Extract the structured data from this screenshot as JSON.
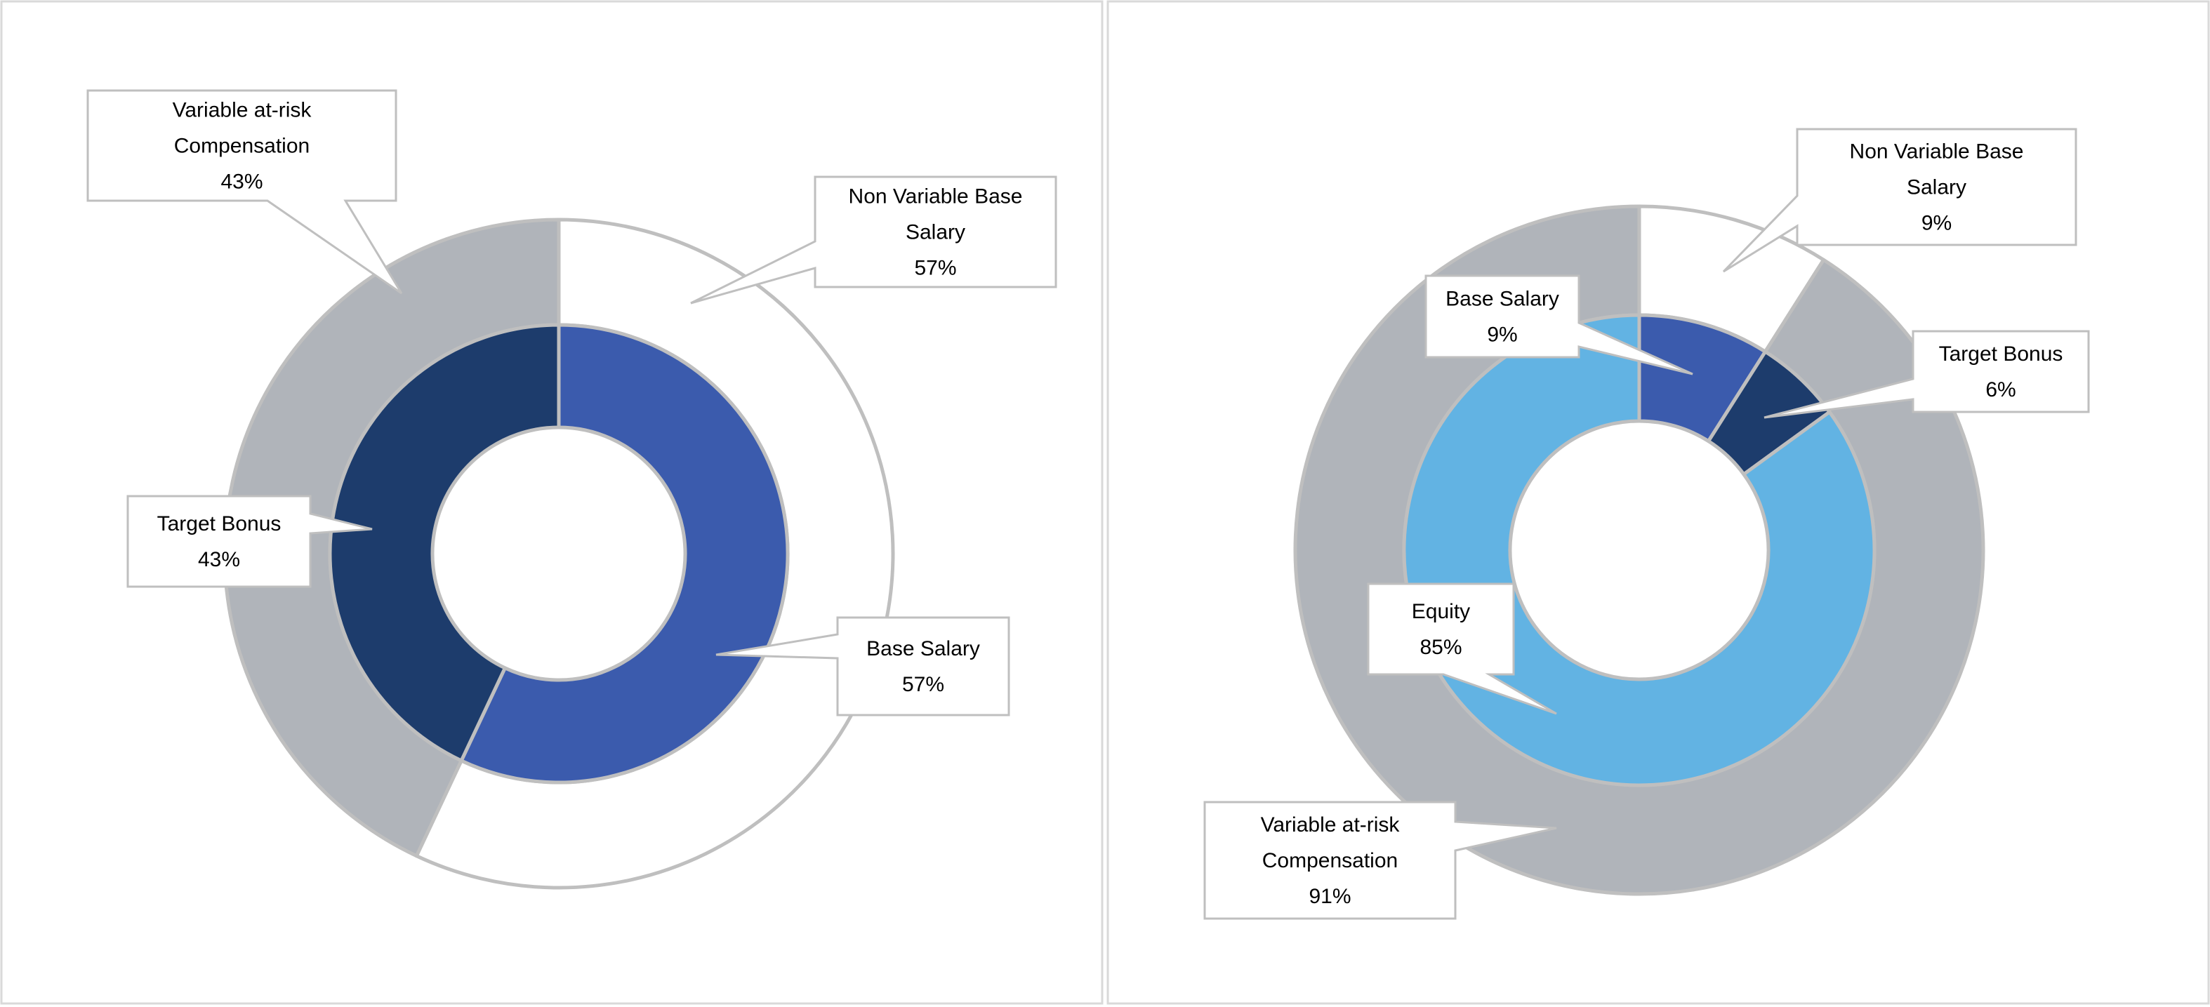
{
  "colors": {
    "base_salary": "#3B5BAD",
    "target_bonus": "#1D3C6C",
    "equity": "#62B3E3",
    "non_variable": "#FFFFFF",
    "variable": "#B0B4BA",
    "stroke": "#BFBFBF",
    "panel_border": "#D9D9D9"
  },
  "chart_data": [
    {
      "type": "donut",
      "rings": [
        {
          "ring": "outer",
          "slices": [
            {
              "name": "Non Variable Base Salary",
              "value": 57,
              "color": "#FFFFFF"
            },
            {
              "name": "Variable at-risk Compensation",
              "value": 43,
              "color": "#B0B4BA"
            }
          ]
        },
        {
          "ring": "inner",
          "slices": [
            {
              "name": "Base Salary",
              "value": 57,
              "color": "#3B5BAD"
            },
            {
              "name": "Target Bonus",
              "value": 43,
              "color": "#1D3C6C"
            }
          ]
        }
      ],
      "labels": [
        {
          "lines": [
            "Variable at-risk",
            "Compensation",
            "43%"
          ]
        },
        {
          "lines": [
            "Non Variable Base",
            "Salary",
            "57%"
          ]
        },
        {
          "lines": [
            "Target Bonus",
            "43%"
          ]
        },
        {
          "lines": [
            "Base Salary",
            "57%"
          ]
        }
      ]
    },
    {
      "type": "donut",
      "rings": [
        {
          "ring": "outer",
          "slices": [
            {
              "name": "Non Variable Base Salary",
              "value": 9,
              "color": "#FFFFFF"
            },
            {
              "name": "Variable at-risk Compensation",
              "value": 91,
              "color": "#B0B4BA"
            }
          ]
        },
        {
          "ring": "inner",
          "slices": [
            {
              "name": "Base Salary",
              "value": 9,
              "color": "#3B5BAD"
            },
            {
              "name": "Target Bonus",
              "value": 6,
              "color": "#1D3C6C"
            },
            {
              "name": "Equity",
              "value": 85,
              "color": "#62B3E3"
            }
          ]
        }
      ],
      "labels": [
        {
          "lines": [
            "Non Variable Base",
            "Salary",
            "9%"
          ]
        },
        {
          "lines": [
            "Base Salary",
            "9%"
          ]
        },
        {
          "lines": [
            "Target Bonus",
            "6%"
          ]
        },
        {
          "lines": [
            "Equity",
            "85%"
          ]
        },
        {
          "lines": [
            "Variable at-risk",
            "Compensation",
            "91%"
          ]
        }
      ]
    }
  ]
}
